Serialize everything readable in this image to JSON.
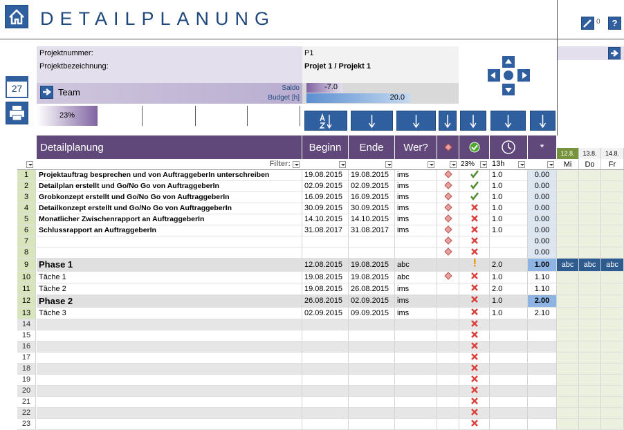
{
  "header": {
    "title": "DETAILPLANUNG",
    "edit_count": "0",
    "help": "?",
    "calendar_day": "27"
  },
  "project": {
    "number_label": "Projektnummer:",
    "number": "P1",
    "name_label": "Projektbezeichnung:",
    "name": "Projet 1 / Projekt 1",
    "team": "Team",
    "saldo_label": "Saldo",
    "budget_label": "Budget [h]",
    "saldo": "-7.0",
    "budget": "20.0",
    "progress": "23%"
  },
  "table": {
    "columns": [
      "Detailplanung",
      "Beginn",
      "Ende",
      "Wer?",
      "*"
    ],
    "filter_label": "Filter:",
    "done_pct": "23%",
    "hours_total": "13h",
    "dates": [
      "12.8.",
      "13.8.",
      "14.8."
    ],
    "weekdays": [
      "Mi",
      "Do",
      "Fr"
    ],
    "rows": [
      {
        "n": "1",
        "task": "Projektauftrag besprechen und von AuftraggeberIn unterschreiben",
        "begin": "19.08.2015",
        "end": "19.08.2015",
        "who": "ims",
        "hours": "1.0",
        "star": "0.00"
      },
      {
        "n": "2",
        "task": "Detailplan erstellt und  Go/No Go von AuftraggeberIn",
        "begin": "02.09.2015",
        "end": "02.09.2015",
        "who": "ims",
        "hours": "1.0",
        "star": "0.00"
      },
      {
        "n": "3",
        "task": "Grobkonzept erstellt und Go/No Go von AuftraggeberIn",
        "begin": "16.09.2015",
        "end": "16.09.2015",
        "who": "ims",
        "hours": "1.0",
        "star": "0.00"
      },
      {
        "n": "4",
        "task": "Detailkonzept erstellt und Go/No Go von AuftraggeberIn",
        "begin": "30.09.2015",
        "end": "30.09.2015",
        "who": "ims",
        "hours": "1.0",
        "star": "0.00"
      },
      {
        "n": "5",
        "task": "Monatlicher Zwischenrapport an AuftraggeberIn",
        "begin": "14.10.2015",
        "end": "14.10.2015",
        "who": "ims",
        "hours": "1.0",
        "star": "0.00"
      },
      {
        "n": "6",
        "task": "Schlussrapport an AuftraggeberIn",
        "begin": "31.08.2017",
        "end": "31.08.2017",
        "who": "ims",
        "hours": "1.0",
        "star": "0.00"
      },
      {
        "n": "7",
        "star": "0.00"
      },
      {
        "n": "8",
        "star": "0.00"
      },
      {
        "n": "9",
        "task": "Phase 1",
        "begin": "12.08.2015",
        "end": "19.08.2015",
        "who": "abc",
        "hours": "2.0",
        "star": "1.00",
        "days": [
          "abc",
          "abc",
          "abc"
        ]
      },
      {
        "n": "10",
        "task": "Tâche 1",
        "begin": "19.08.2015",
        "end": "19.08.2015",
        "who": "abc",
        "hours": "1.0",
        "star": "1.10"
      },
      {
        "n": "11",
        "task": "Tâche 2",
        "begin": "19.08.2015",
        "end": "26.08.2015",
        "who": "ims",
        "hours": "2.0",
        "star": "1.10"
      },
      {
        "n": "12",
        "task": "Phase 2",
        "begin": "26.08.2015",
        "end": "02.09.2015",
        "who": "ims",
        "hours": "1.0",
        "star": "2.00"
      },
      {
        "n": "13",
        "task": "Tâche 3",
        "begin": "02.09.2015",
        "end": "09.09.2015",
        "who": "ims",
        "hours": "1.0",
        "star": "2.10"
      },
      {
        "n": "14"
      },
      {
        "n": "15"
      },
      {
        "n": "16"
      },
      {
        "n": "17"
      },
      {
        "n": "18"
      },
      {
        "n": "19"
      },
      {
        "n": "20"
      },
      {
        "n": "21"
      },
      {
        "n": "22"
      },
      {
        "n": "23"
      }
    ]
  }
}
